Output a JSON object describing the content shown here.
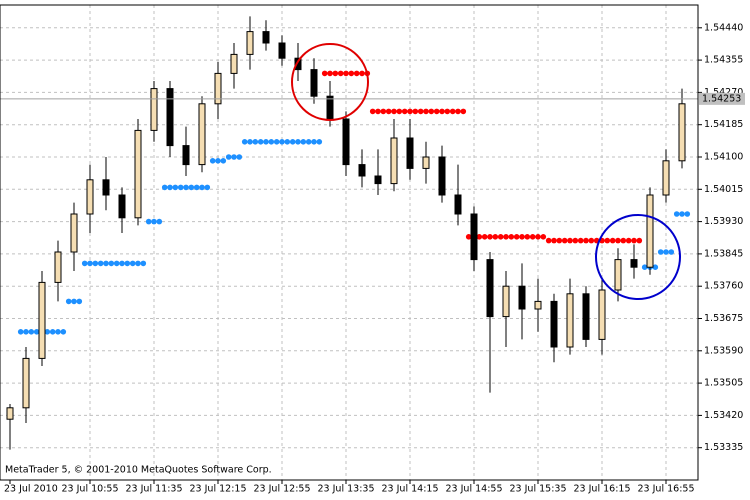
{
  "chart_data": {
    "type": "candlestick",
    "footer": "MetaTrader 5, © 2001-2010 MetaQuotes Software Corp.",
    "categories": [
      "23 Jul 2010",
      null,
      null,
      null,
      null,
      "23 Jul 10:55",
      null,
      null,
      null,
      "23 Jul 11:35",
      null,
      null,
      null,
      "23 Jul 12:15",
      null,
      null,
      null,
      "23 Jul 12:55",
      null,
      null,
      null,
      "23 Jul 13:35",
      null,
      null,
      null,
      "23 Jul 14:15",
      null,
      null,
      null,
      "23 Jul 14:55",
      null,
      null,
      null,
      "23 Jul 15:35",
      null,
      null,
      null,
      "23 Jul 16:15",
      null,
      null,
      null,
      "23 Jul 16:55",
      null
    ],
    "open": [
      1.5341,
      1.5344,
      1.5357,
      1.5377,
      1.5385,
      1.5395,
      1.5404,
      1.54,
      1.5394,
      1.5417,
      1.5428,
      1.5413,
      1.5408,
      1.5424,
      1.5432,
      1.5437,
      1.5443,
      1.544,
      1.5436,
      1.5433,
      1.5426,
      1.542,
      1.5408,
      1.5405,
      1.5403,
      1.5415,
      1.5407,
      1.541,
      1.54,
      1.5395,
      1.5383,
      1.5368,
      1.5376,
      1.537,
      1.5372,
      1.536,
      1.5374,
      1.5362,
      1.5375,
      1.5383,
      1.5381,
      1.54,
      1.5409
    ],
    "high": [
      1.5345,
      1.536,
      1.538,
      1.5388,
      1.5398,
      1.5408,
      1.541,
      1.5402,
      1.542,
      1.543,
      1.543,
      1.5418,
      1.5426,
      1.5435,
      1.544,
      1.5447,
      1.5446,
      1.5442,
      1.544,
      1.5436,
      1.543,
      1.5422,
      1.5412,
      1.5412,
      1.542,
      1.542,
      1.5414,
      1.5413,
      1.5408,
      1.5397,
      1.5385,
      1.538,
      1.5382,
      1.5378,
      1.5374,
      1.5378,
      1.5376,
      1.5378,
      1.5386,
      1.5387,
      1.5402,
      1.5412,
      1.5428
    ],
    "low": [
      1.5333,
      1.534,
      1.5355,
      1.5372,
      1.538,
      1.539,
      1.5396,
      1.539,
      1.5392,
      1.5414,
      1.541,
      1.5405,
      1.5406,
      1.542,
      1.5428,
      1.5433,
      1.5438,
      1.5434,
      1.543,
      1.5424,
      1.5418,
      1.5405,
      1.5402,
      1.54,
      1.5401,
      1.5404,
      1.5403,
      1.5398,
      1.5392,
      1.538,
      1.5348,
      1.536,
      1.5362,
      1.5364,
      1.5356,
      1.5358,
      1.536,
      1.5358,
      1.5372,
      1.5378,
      1.5379,
      1.5398,
      1.5407
    ],
    "close": [
      1.5344,
      1.5357,
      1.5377,
      1.5385,
      1.5395,
      1.5404,
      1.54,
      1.5394,
      1.5417,
      1.5428,
      1.5413,
      1.5408,
      1.5424,
      1.5432,
      1.5437,
      1.5443,
      1.544,
      1.5436,
      1.5433,
      1.5426,
      1.542,
      1.5408,
      1.5405,
      1.5403,
      1.5415,
      1.5407,
      1.541,
      1.54,
      1.5395,
      1.5383,
      1.5368,
      1.5376,
      1.537,
      1.5372,
      1.536,
      1.5374,
      1.5362,
      1.5375,
      1.5383,
      1.5381,
      1.54,
      1.5409,
      1.5424
    ],
    "bull_color": "#f5deb3",
    "bear_color": "#000000",
    "series": [
      {
        "color": "#1e90ff",
        "values": [
          null,
          1.5364,
          1.5364,
          1.5364,
          1.5372,
          1.5382,
          1.5382,
          1.5382,
          1.5382,
          1.5393,
          1.5402,
          1.5402,
          1.5402,
          1.5409,
          1.541,
          1.5414,
          1.5414,
          1.5414,
          1.5414,
          1.5414,
          null,
          null,
          null,
          null,
          null,
          null,
          null,
          null,
          null,
          null,
          null,
          null,
          null,
          null,
          null,
          null,
          null,
          null,
          null,
          null,
          1.5381,
          1.5385,
          1.5395
        ]
      },
      {
        "color": "#ff0000",
        "values": [
          null,
          null,
          null,
          null,
          null,
          null,
          null,
          null,
          null,
          null,
          null,
          null,
          null,
          null,
          null,
          null,
          null,
          null,
          null,
          null,
          1.5432,
          1.5432,
          1.5432,
          1.5422,
          1.5422,
          1.5422,
          1.5422,
          1.5422,
          1.5422,
          1.5389,
          1.5389,
          1.5389,
          1.5389,
          1.5389,
          1.5388,
          1.5388,
          1.5388,
          1.5388,
          1.5388,
          1.5388,
          null,
          null,
          null
        ]
      }
    ],
    "current_price": 1.54253,
    "ylim": [
      1.5325,
      1.545
    ],
    "yticks": [
      {
        "value": 1.5444,
        "label": "1.54440"
      },
      1.54355,
      {
        "value": 1.5427,
        "label": "1.54270"
      },
      1.54185,
      {
        "value": 1.541,
        "label": "1.54100"
      },
      1.54015,
      {
        "value": 1.5393,
        "label": "1.53930"
      },
      1.53845,
      {
        "value": 1.5376,
        "label": "1.53760"
      },
      1.53675,
      {
        "value": 1.5359,
        "label": "1.53590"
      },
      1.53505,
      {
        "value": 1.5342,
        "label": "1.53420"
      },
      1.53335
    ],
    "grid": true
  }
}
